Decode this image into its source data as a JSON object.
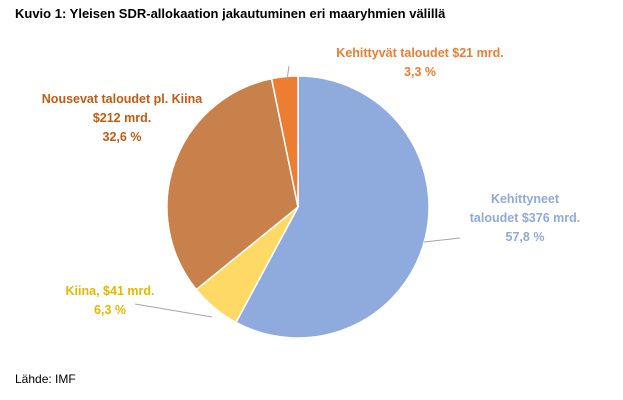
{
  "title": "Kuvio 1: Yleisen SDR-allokaation jakautuminen eri maaryhmien välillä",
  "source": "Lähde: IMF",
  "chart_data": {
    "type": "pie",
    "start_angle_deg": 0,
    "direction": "clockwise",
    "slices": [
      {
        "name": "Kehittyneet taloudet",
        "value": 376,
        "percent": 57.8,
        "color": "#8FAADC",
        "label_lines": [
          "Kehittyneet",
          "taloudet $376 mrd.",
          "57,8 %"
        ]
      },
      {
        "name": "Kiina",
        "value": 41,
        "percent": 6.3,
        "color": "#FFD966",
        "label_color": "#E6B800",
        "label_lines": [
          "Kiina, $41 mrd.",
          "6,3 %"
        ]
      },
      {
        "name": "Nousevat taloudet pl. Kiina",
        "value": 212,
        "percent": 32.6,
        "color": "#C9814B",
        "label_color": "#C55A11",
        "label_lines": [
          "Nousevat taloudet pl. Kiina",
          "$212 mrd.",
          "32,6 %"
        ]
      },
      {
        "name": "Kehittyvät taloudet",
        "value": 21,
        "percent": 3.3,
        "color": "#ED7D31",
        "label_lines": [
          "Kehittyvät taloudet $21 mrd.",
          "3,3 %"
        ]
      }
    ]
  }
}
